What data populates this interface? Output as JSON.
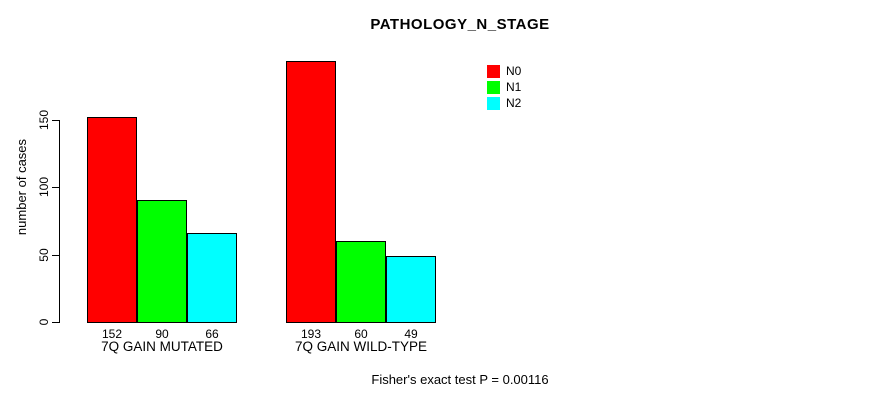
{
  "chart_data": {
    "type": "bar",
    "title": "PATHOLOGY_N_STAGE",
    "xlabel": "",
    "ylabel": "number of cases",
    "ylim": [
      0,
      200
    ],
    "yticks": [
      0,
      50,
      100,
      150
    ],
    "grid": false,
    "categories": [
      "7Q GAIN MUTATED",
      "7Q GAIN WILD-TYPE"
    ],
    "series": [
      {
        "name": "N0",
        "color": "#ff0000",
        "values": [
          152,
          193
        ]
      },
      {
        "name": "N1",
        "color": "#00ff00",
        "values": [
          90,
          60
        ]
      },
      {
        "name": "N2",
        "color": "#00ffff",
        "values": [
          66,
          49
        ]
      }
    ],
    "bar_value_labels_shown": true,
    "legend": {
      "position": "top-right",
      "entries": [
        "N0",
        "N1",
        "N2"
      ]
    },
    "annotation": "Fisher's exact test P = 0.00116"
  },
  "colors": {
    "background": "#ffffff",
    "axis": "#000000",
    "text": "#000000",
    "bar_border": "#000000"
  }
}
